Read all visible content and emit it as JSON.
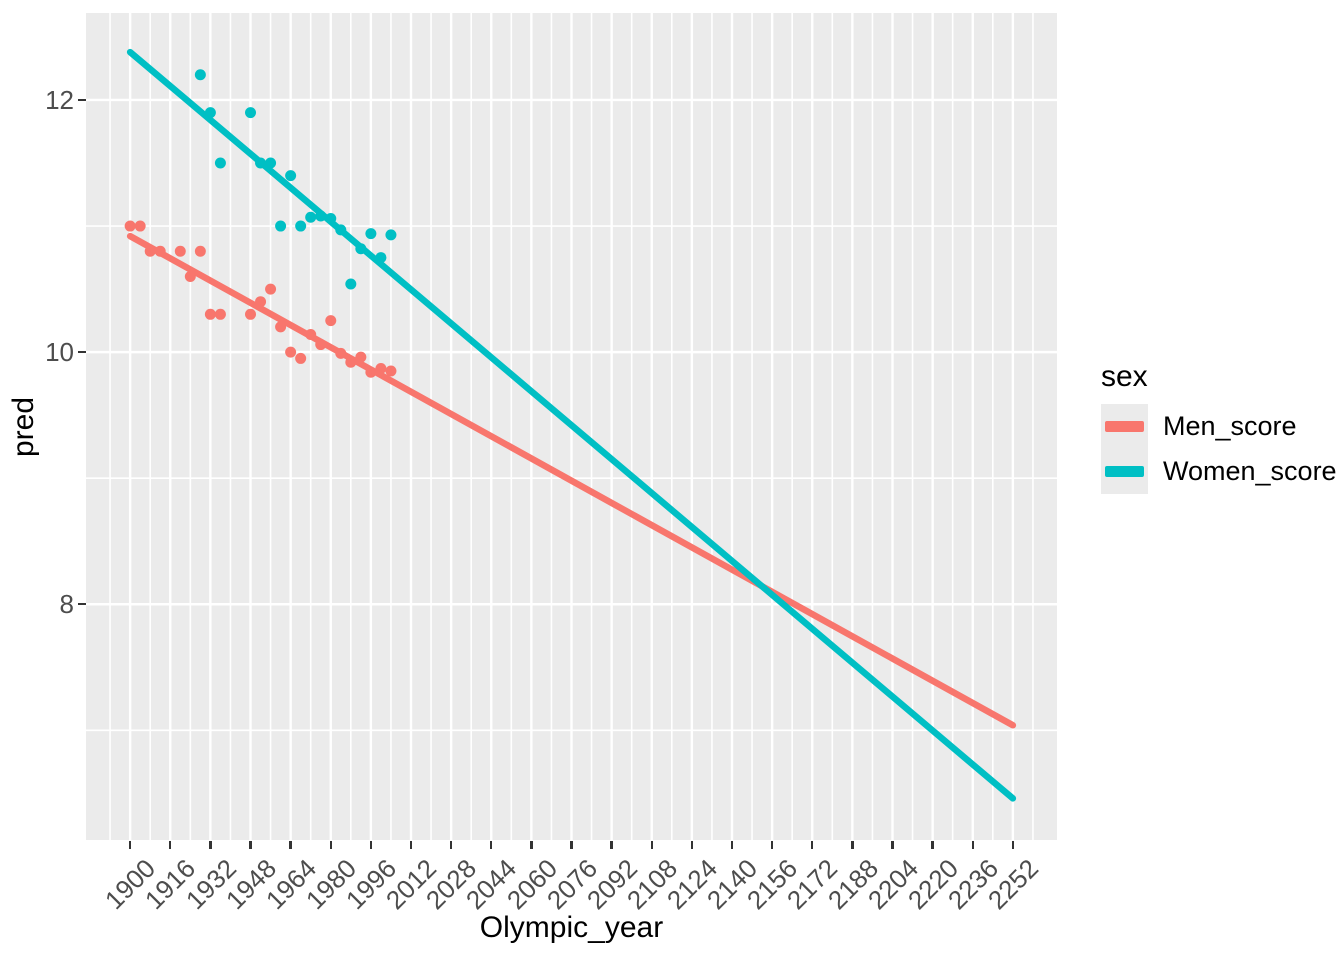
{
  "chart_data": {
    "type": "scatter",
    "has_trend_lines": true,
    "title": "",
    "xlabel": "Olympic_year",
    "ylabel": "pred",
    "x_domain": [
      1882.4,
      2269.6
    ],
    "y_domain": [
      6.13,
      12.69
    ],
    "x_ticks": [
      1900,
      1916,
      1932,
      1948,
      1964,
      1980,
      1996,
      2012,
      2028,
      2044,
      2060,
      2076,
      2092,
      2108,
      2124,
      2140,
      2156,
      2172,
      2188,
      2204,
      2220,
      2236,
      2252
    ],
    "x_minor_ticks": [
      1892,
      1908,
      1924,
      1940,
      1956,
      1972,
      1988,
      2004,
      2020,
      2036,
      2052,
      2068,
      2084,
      2100,
      2116,
      2132,
      2148,
      2164,
      2180,
      2196,
      2212,
      2228,
      2244,
      2260
    ],
    "y_ticks": [
      8,
      10,
      12
    ],
    "y_minor_ticks": [
      7,
      9,
      11
    ],
    "grid": true,
    "legend": {
      "title": "sex",
      "position": "right"
    },
    "series": [
      {
        "name": "Men_score",
        "color": "#F8766D",
        "points_x": [
          1900,
          1904,
          1908,
          1912,
          1920,
          1924,
          1928,
          1932,
          1936,
          1948,
          1952,
          1956,
          1960,
          1964,
          1968,
          1972,
          1976,
          1980,
          1984,
          1988,
          1992,
          1996,
          2000,
          2004
        ],
        "points_y": [
          11.0,
          11.0,
          10.8,
          10.8,
          10.8,
          10.6,
          10.8,
          10.3,
          10.3,
          10.3,
          10.4,
          10.5,
          10.2,
          10.0,
          9.95,
          10.14,
          10.06,
          10.25,
          9.99,
          9.92,
          9.96,
          9.84,
          9.87,
          9.85
        ],
        "trend_x": [
          1900,
          2252
        ],
        "trend_y": [
          10.92,
          7.04
        ]
      },
      {
        "name": "Women_score",
        "color": "#00BFC4",
        "points_x": [
          1928,
          1932,
          1936,
          1948,
          1952,
          1956,
          1960,
          1964,
          1968,
          1972,
          1976,
          1980,
          1984,
          1988,
          1992,
          1996,
          2000,
          2004
        ],
        "points_y": [
          12.2,
          11.9,
          11.5,
          11.9,
          11.5,
          11.5,
          11.0,
          11.4,
          11.0,
          11.07,
          11.08,
          11.06,
          10.97,
          10.54,
          10.82,
          10.94,
          10.75,
          10.93
        ],
        "trend_x": [
          1900,
          2252
        ],
        "trend_y": [
          12.38,
          6.46
        ]
      }
    ],
    "style": {
      "panel_bg": "#EBEBEB",
      "gridline": "#FFFFFF",
      "tick_mark": "#333333",
      "tick_label": "#4D4D4D",
      "axis_title": "#000000",
      "figure_bg": "#FFFFFF",
      "point_radius": 5.5,
      "line_width": 6.5,
      "major_grid_width": 2.4,
      "minor_grid_width": 1.6
    }
  }
}
